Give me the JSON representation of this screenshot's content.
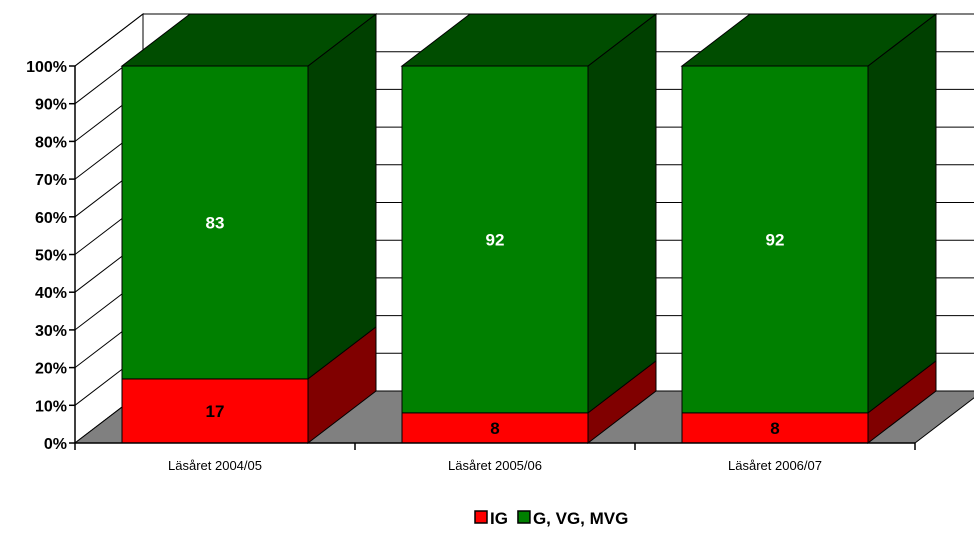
{
  "chart_data": {
    "type": "bar",
    "stacked": true,
    "three_d": true,
    "categories": [
      "Läsåret 2004/05",
      "Läsåret 2005/06",
      "Läsåret 2006/07"
    ],
    "series": [
      {
        "name": "IG",
        "values": [
          17,
          8,
          8
        ],
        "color": "#ff0000",
        "label_color": "#000000"
      },
      {
        "name": "G, VG, MVG",
        "values": [
          83,
          92,
          92
        ],
        "color": "#008000",
        "label_color": "#ffffff"
      }
    ],
    "y_ticks": [
      "0%",
      "10%",
      "20%",
      "30%",
      "40%",
      "50%",
      "60%",
      "70%",
      "80%",
      "90%",
      "100%"
    ],
    "ylim": [
      0,
      100
    ],
    "grid": true,
    "legend_position": "bottom",
    "colors": {
      "floor": "#808080",
      "grid": "#000000"
    }
  }
}
